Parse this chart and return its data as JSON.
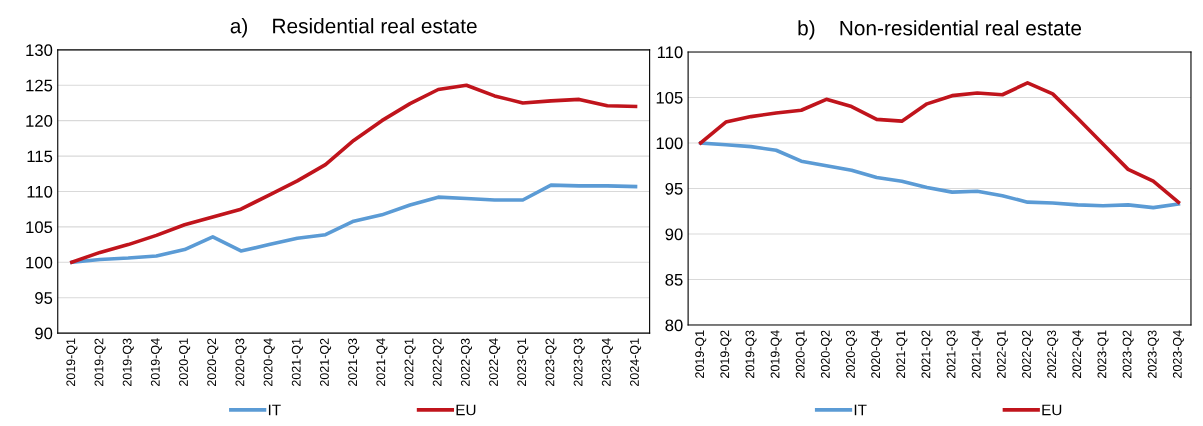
{
  "chart_data": [
    {
      "type": "line",
      "title": "a)    Residential real estate",
      "categories": [
        "2019-Q1",
        "2019-Q2",
        "2019-Q3",
        "2019-Q4",
        "2020-Q1",
        "2020-Q2",
        "2020-Q3",
        "2020-Q4",
        "2021-Q1",
        "2021-Q2",
        "2021-Q3",
        "2021-Q4",
        "2022-Q1",
        "2022-Q2",
        "2022-Q3",
        "2022-Q4",
        "2023-Q1",
        "2023-Q2",
        "2023-Q3",
        "2023-Q4",
        "2024-Q1"
      ],
      "series": [
        {
          "name": "IT",
          "color": "#5b9bd5",
          "values": [
            100,
            100.4,
            100.6,
            100.9,
            101.8,
            103.6,
            101.6,
            102.5,
            103.4,
            103.9,
            105.8,
            106.7,
            108.1,
            109.2,
            109.0,
            108.8,
            108.8,
            110.9,
            110.8,
            110.8,
            110.7
          ]
        },
        {
          "name": "EU",
          "color": "#c0141c",
          "values": [
            100,
            101.4,
            102.5,
            103.8,
            105.3,
            106.4,
            107.5,
            109.5,
            111.5,
            113.8,
            117.2,
            120.0,
            122.4,
            124.4,
            125.0,
            123.5,
            122.5,
            122.8,
            123.0,
            122.1,
            122.0
          ]
        }
      ],
      "ylim": [
        90,
        130
      ],
      "yticks": [
        90,
        95,
        100,
        105,
        110,
        115,
        120,
        125,
        130
      ],
      "grid": "y",
      "legend": "bottom",
      "marker": "none",
      "line_style": "solid"
    },
    {
      "type": "line",
      "title": "b)    Non-residential real estate",
      "categories": [
        "2019-Q1",
        "2019-Q2",
        "2019-Q3",
        "2019-Q4",
        "2020-Q1",
        "2020-Q2",
        "2020-Q3",
        "2020-Q4",
        "2021-Q1",
        "2021-Q2",
        "2021-Q3",
        "2021-Q4",
        "2022-Q1",
        "2022-Q2",
        "2022-Q3",
        "2022-Q4",
        "2023-Q1",
        "2023-Q2",
        "2023-Q3",
        "2023-Q4"
      ],
      "series": [
        {
          "name": "IT",
          "color": "#5b9bd5",
          "values": [
            100,
            99.8,
            99.6,
            99.2,
            98.0,
            97.5,
            97.0,
            96.2,
            95.8,
            95.1,
            94.6,
            94.7,
            94.2,
            93.5,
            93.4,
            93.2,
            93.1,
            93.2,
            92.9,
            93.3
          ]
        },
        {
          "name": "EU",
          "color": "#c0141c",
          "values": [
            100,
            102.3,
            102.9,
            103.3,
            103.6,
            104.8,
            104.0,
            102.6,
            102.4,
            104.3,
            105.2,
            105.5,
            105.3,
            106.6,
            105.4,
            102.7,
            99.9,
            97.1,
            95.8,
            93.5
          ]
        }
      ],
      "ylim": [
        80,
        110
      ],
      "yticks": [
        80,
        85,
        90,
        95,
        100,
        105,
        110
      ],
      "grid": "y",
      "legend": "bottom",
      "marker": "none",
      "line_style": "solid"
    }
  ]
}
